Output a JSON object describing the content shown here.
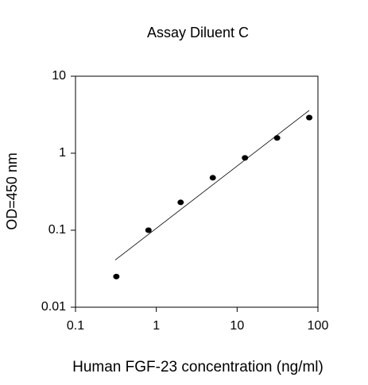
{
  "chart_data": {
    "type": "scatter",
    "title": "Assay Diluent C",
    "x_label": "Human FGF-23 concentration (ng/ml)",
    "y_label": "OD=450 nm",
    "x_scale": "log",
    "y_scale": "log",
    "xlim": [
      0.1,
      100
    ],
    "xticks": [
      0.1,
      1,
      10,
      100
    ],
    "ylim": [
      0.01,
      10
    ],
    "yticks": [
      0.01,
      0.1,
      1,
      10
    ],
    "series": [
      {
        "mode": "markers",
        "color": "#000000",
        "x": [
          0.32,
          0.8,
          2,
          5,
          12.5,
          31.25,
          78.125
        ],
        "values": [
          0.025,
          0.1,
          0.23,
          0.48,
          0.87,
          1.58,
          2.9
        ]
      },
      {
        "mode": "line",
        "color": "#000000",
        "x": [
          0.31,
          78.125
        ],
        "values": [
          0.041,
          3.6
        ]
      }
    ]
  }
}
